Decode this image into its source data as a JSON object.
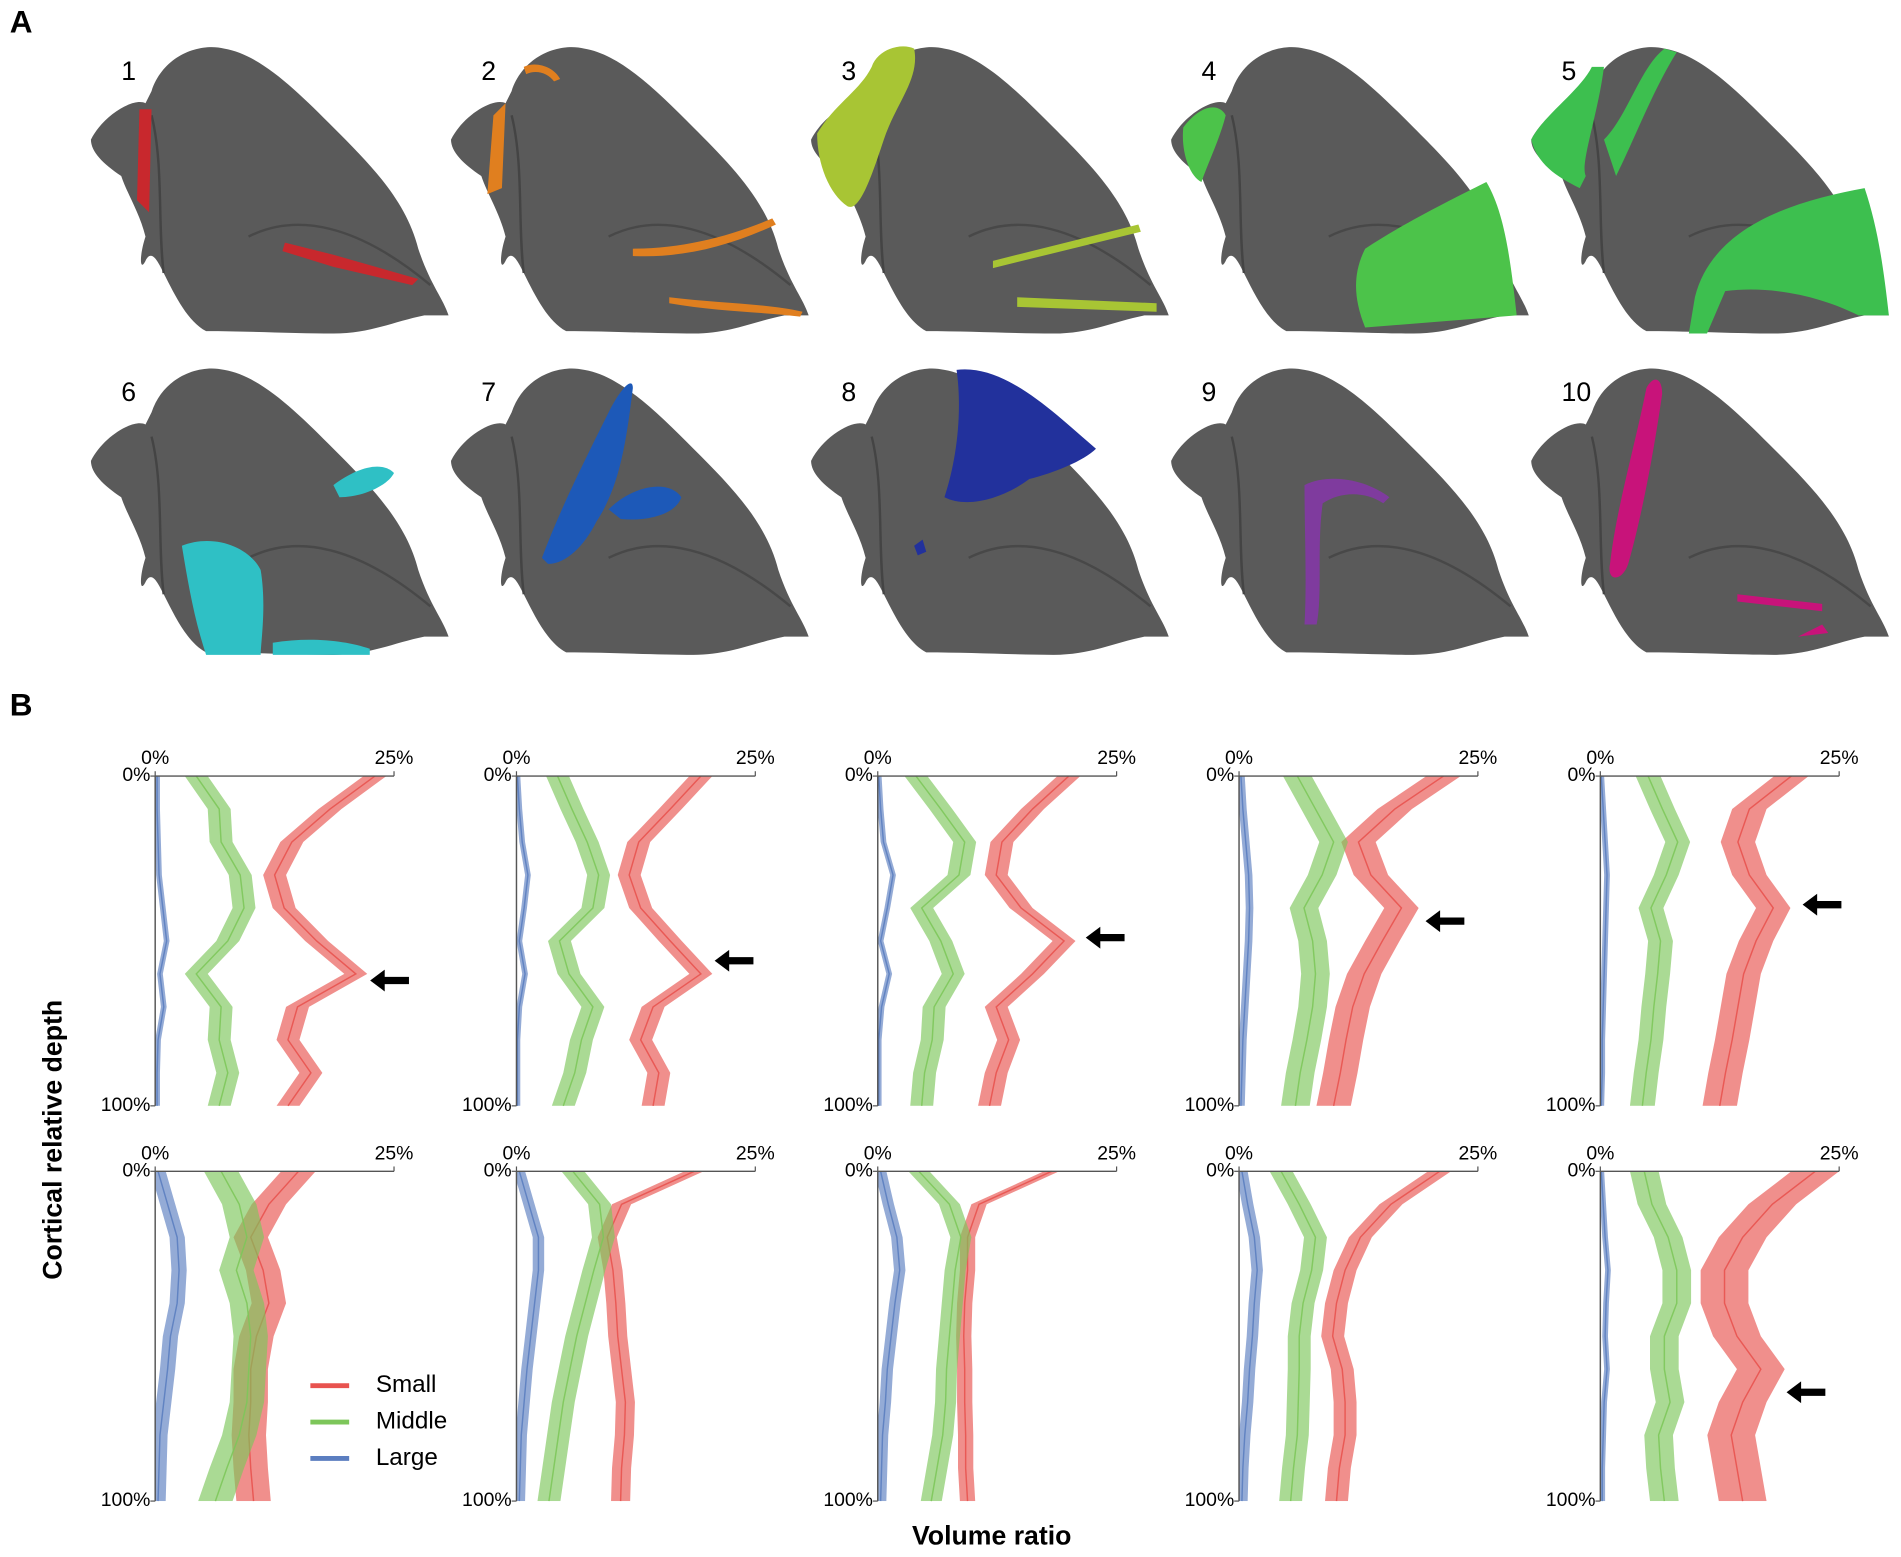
{
  "figure": {
    "panel_a_label": "A",
    "panel_b_label": "B",
    "map_labels": [
      "1",
      "2",
      "3",
      "4",
      "5",
      "6",
      "7",
      "8",
      "9",
      "10"
    ],
    "y_label": "Cortical relative depth",
    "x_label": "Volume ratio"
  },
  "chart_data": [
    {
      "type": "line",
      "y_inverted": true,
      "xlim": [
        0,
        25
      ],
      "ylim": [
        0,
        100
      ],
      "xticks": [
        {
          "value": 0,
          "label": "0%"
        },
        {
          "value": 25,
          "label": "25%"
        }
      ],
      "yticks": [
        {
          "value": 0,
          "label": "0%"
        },
        {
          "value": 100,
          "label": "100%"
        }
      ],
      "y": [
        0,
        10,
        20,
        30,
        40,
        50,
        60,
        70,
        80,
        90,
        100
      ],
      "arrow_depth": 62,
      "series": [
        {
          "name": "Small",
          "color": "#e8534f",
          "error": 1.2,
          "values": [
            23,
            18.3,
            14.3,
            12.5,
            13.5,
            16.9,
            21,
            14.9,
            13.9,
            16.3,
            13.9
          ]
        },
        {
          "name": "Middle",
          "color": "#7dc65a",
          "error": 1.2,
          "values": [
            4.3,
            6.7,
            6.9,
            8.9,
            9.3,
            7.6,
            4.3,
            6.9,
            6.7,
            7.6,
            6.7
          ]
        },
        {
          "name": "Large",
          "color": "#5b7ec0",
          "error": 0.3,
          "values": [
            0.2,
            0.2,
            0.3,
            0.4,
            0.8,
            1.2,
            0.5,
            0.9,
            0.3,
            0.2,
            0.2
          ]
        }
      ]
    },
    {
      "type": "line",
      "y_inverted": true,
      "xlim": [
        0,
        25
      ],
      "ylim": [
        0,
        100
      ],
      "xticks": [
        {
          "value": 0,
          "label": "0%"
        },
        {
          "value": 25,
          "label": "25%"
        }
      ],
      "yticks": [
        {
          "value": 0,
          "label": "0%"
        },
        {
          "value": 100,
          "label": "100%"
        }
      ],
      "y": [
        0,
        10,
        20,
        30,
        40,
        50,
        60,
        70,
        80,
        90,
        100
      ],
      "arrow_depth": 56,
      "series": [
        {
          "name": "Small",
          "color": "#e8534f",
          "error": 1.2,
          "values": [
            19.3,
            16.1,
            12.8,
            11.8,
            13,
            16.1,
            19.3,
            14.3,
            13,
            14.9,
            14.3
          ]
        },
        {
          "name": "Middle",
          "color": "#7dc65a",
          "error": 1.2,
          "values": [
            4.3,
            5.8,
            7.4,
            8.6,
            8,
            4.5,
            5.5,
            8,
            6.8,
            6.1,
            4.9
          ]
        },
        {
          "name": "Large",
          "color": "#5b7ec0",
          "error": 0.3,
          "values": [
            0.1,
            0.3,
            0.6,
            1.2,
            0.8,
            0.3,
            0.9,
            0.3,
            0.1,
            0.1,
            0.1
          ]
        }
      ]
    },
    {
      "type": "line",
      "y_inverted": true,
      "xlim": [
        0,
        25
      ],
      "ylim": [
        0,
        100
      ],
      "xticks": [
        {
          "value": 0,
          "label": "0%"
        },
        {
          "value": 25,
          "label": "25%"
        }
      ],
      "yticks": [
        {
          "value": 0,
          "label": "0%"
        },
        {
          "value": 100,
          "label": "100%"
        }
      ],
      "y": [
        0,
        10,
        20,
        30,
        40,
        50,
        60,
        70,
        80,
        90,
        100
      ],
      "arrow_depth": 49,
      "series": [
        {
          "name": "Small",
          "color": "#e8534f",
          "error": 1.2,
          "values": [
            20,
            16.2,
            13,
            12.4,
            15,
            19.5,
            16.2,
            12.4,
            13.7,
            12.4,
            11.7
          ]
        },
        {
          "name": "Middle",
          "color": "#7dc65a",
          "error": 1.2,
          "values": [
            4,
            6.6,
            9.1,
            8.5,
            4.6,
            6.6,
            7.9,
            5.9,
            5.7,
            4.9,
            4.6
          ]
        },
        {
          "name": "Large",
          "color": "#5b7ec0",
          "error": 0.3,
          "values": [
            0.1,
            0.3,
            0.6,
            1.6,
            1,
            0.3,
            1.2,
            0.4,
            0.1,
            0.1,
            0.1
          ]
        }
      ]
    },
    {
      "type": "line",
      "y_inverted": true,
      "xlim": [
        0,
        25
      ],
      "ylim": [
        0,
        100
      ],
      "xticks": [
        {
          "value": 0,
          "label": "0%"
        },
        {
          "value": 25,
          "label": "25%"
        }
      ],
      "yticks": [
        {
          "value": 0,
          "label": "0%"
        },
        {
          "value": 100,
          "label": "100%"
        }
      ],
      "y": [
        0,
        10,
        20,
        30,
        40,
        50,
        60,
        70,
        80,
        90,
        100
      ],
      "arrow_depth": 44,
      "series": [
        {
          "name": "Small",
          "color": "#e8534f",
          "error": 1.8,
          "values": [
            21.4,
            16.3,
            12.5,
            13.8,
            17,
            15,
            13.1,
            11.9,
            11.2,
            10.6,
            9.9
          ]
        },
        {
          "name": "Middle",
          "color": "#7dc65a",
          "error": 1.5,
          "values": [
            6.1,
            8,
            9.9,
            8.7,
            6.8,
            7.7,
            8,
            7.7,
            7.1,
            6.4,
            5.9
          ]
        },
        {
          "name": "Large",
          "color": "#5b7ec0",
          "error": 0.4,
          "values": [
            0.2,
            0.4,
            0.7,
            1,
            1.1,
            1,
            0.8,
            0.6,
            0.4,
            0.3,
            0.2
          ]
        }
      ]
    },
    {
      "type": "line",
      "y_inverted": true,
      "xlim": [
        0,
        25
      ],
      "ylim": [
        0,
        100
      ],
      "xticks": [
        {
          "value": 0,
          "label": "0%"
        },
        {
          "value": 25,
          "label": "25%"
        }
      ],
      "yticks": [
        {
          "value": 0,
          "label": "0%"
        },
        {
          "value": 100,
          "label": "100%"
        }
      ],
      "y": [
        0,
        10,
        20,
        30,
        40,
        50,
        60,
        70,
        80,
        90,
        100
      ],
      "arrow_depth": 39,
      "series": [
        {
          "name": "Small",
          "color": "#e8534f",
          "error": 1.8,
          "values": [
            20,
            15.6,
            14.4,
            15.6,
            18.1,
            16.3,
            15,
            14.4,
            13.8,
            13.1,
            12.5
          ]
        },
        {
          "name": "Middle",
          "color": "#7dc65a",
          "error": 1.3,
          "values": [
            5,
            6.5,
            8.1,
            6.9,
            5.3,
            6.3,
            6,
            5.6,
            5.3,
            4.8,
            4.4
          ]
        },
        {
          "name": "Large",
          "color": "#5b7ec0",
          "error": 0.3,
          "values": [
            0.1,
            0.3,
            0.5,
            0.7,
            0.6,
            0.5,
            0.4,
            0.3,
            0.2,
            0.2,
            0.1
          ]
        }
      ]
    },
    {
      "type": "line",
      "y_inverted": true,
      "legend": true,
      "xlim": [
        0,
        25
      ],
      "ylim": [
        0,
        100
      ],
      "xticks": [
        {
          "value": 0,
          "label": "0%"
        },
        {
          "value": 25,
          "label": "25%"
        }
      ],
      "yticks": [
        {
          "value": 0,
          "label": "0%"
        },
        {
          "value": 100,
          "label": "100%"
        }
      ],
      "y": [
        0,
        10,
        20,
        30,
        40,
        50,
        60,
        70,
        80,
        90,
        100
      ],
      "series": [
        {
          "name": "Small",
          "color": "#e8534f",
          "error": 1.8,
          "values": [
            15,
            11.9,
            10,
            11.3,
            11.9,
            10.6,
            10,
            10,
            9.8,
            10,
            10.3
          ]
        },
        {
          "name": "Middle",
          "color": "#7dc65a",
          "error": 1.8,
          "values": [
            6.9,
            8.8,
            9.6,
            8.5,
            9.6,
            10,
            9.8,
            9.6,
            8.8,
            7.5,
            6.3
          ]
        },
        {
          "name": "Large",
          "color": "#5b7ec0",
          "error": 0.8,
          "values": [
            0.3,
            1.3,
            2.3,
            2.5,
            2.3,
            1.6,
            1.3,
            0.9,
            0.5,
            0.4,
            0.3
          ]
        }
      ]
    },
    {
      "type": "line",
      "y_inverted": true,
      "xlim": [
        0,
        25
      ],
      "ylim": [
        0,
        100
      ],
      "xticks": [
        {
          "value": 0,
          "label": "0%"
        },
        {
          "value": 25,
          "label": "25%"
        }
      ],
      "yticks": [
        {
          "value": 0,
          "label": "0%"
        },
        {
          "value": 100,
          "label": "100%"
        }
      ],
      "y": [
        0,
        10,
        20,
        30,
        40,
        50,
        60,
        70,
        80,
        90,
        100
      ],
      "series": [
        {
          "name": "Small",
          "color": "#e8534f",
          "error": 1,
          "values": [
            18.6,
            11,
            9.5,
            10.1,
            10.4,
            10.6,
            11,
            11.4,
            11.3,
            11,
            10.9
          ]
        },
        {
          "name": "Middle",
          "color": "#7dc65a",
          "error": 1.2,
          "values": [
            5.9,
            8.7,
            9.1,
            8.1,
            7.2,
            6.3,
            5.6,
            4.9,
            4.4,
            3.9,
            3.4
          ]
        },
        {
          "name": "Large",
          "color": "#5b7ec0",
          "error": 0.6,
          "values": [
            0.3,
            1.3,
            2.3,
            2.3,
            1.9,
            1.5,
            1.1,
            0.8,
            0.5,
            0.4,
            0.3
          ]
        }
      ]
    },
    {
      "type": "line",
      "y_inverted": true,
      "xlim": [
        0,
        25
      ],
      "ylim": [
        0,
        100
      ],
      "xticks": [
        {
          "value": 0,
          "label": "0%"
        },
        {
          "value": 25,
          "label": "25%"
        }
      ],
      "yticks": [
        {
          "value": 0,
          "label": "0%"
        },
        {
          "value": 100,
          "label": "100%"
        }
      ],
      "y": [
        0,
        10,
        20,
        30,
        40,
        50,
        60,
        70,
        80,
        90,
        100
      ],
      "series": [
        {
          "name": "Small",
          "color": "#e8534f",
          "error": 0.8,
          "values": [
            18.2,
            10.6,
            9.4,
            9.4,
            9.1,
            9,
            9.1,
            9.1,
            9.2,
            9.2,
            9.4
          ]
        },
        {
          "name": "Middle",
          "color": "#7dc65a",
          "error": 1.1,
          "values": [
            4.3,
            7.5,
            8.7,
            8.1,
            7.8,
            7.5,
            7.2,
            7.1,
            6.8,
            6.2,
            5.6
          ]
        },
        {
          "name": "Large",
          "color": "#5b7ec0",
          "error": 0.6,
          "values": [
            0.3,
            1.1,
            2,
            2.3,
            1.8,
            1.4,
            1,
            0.8,
            0.5,
            0.4,
            0.3
          ]
        }
      ]
    },
    {
      "type": "line",
      "y_inverted": true,
      "xlim": [
        0,
        25
      ],
      "ylim": [
        0,
        100
      ],
      "xticks": [
        {
          "value": 0,
          "label": "0%"
        },
        {
          "value": 25,
          "label": "25%"
        }
      ],
      "yticks": [
        {
          "value": 0,
          "label": "0%"
        },
        {
          "value": 100,
          "label": "100%"
        }
      ],
      "y": [
        0,
        10,
        20,
        30,
        40,
        50,
        60,
        70,
        80,
        90,
        100
      ],
      "series": [
        {
          "name": "Small",
          "color": "#e8534f",
          "error": 1.2,
          "values": [
            21,
            15.9,
            12.7,
            11.1,
            10.2,
            9.8,
            10.8,
            11.1,
            11.1,
            10.5,
            10.2
          ]
        },
        {
          "name": "Middle",
          "color": "#7dc65a",
          "error": 1.2,
          "values": [
            4.4,
            6.3,
            8,
            7.6,
            6.7,
            6.3,
            6.3,
            6.2,
            6.1,
            5.7,
            5.4
          ]
        },
        {
          "name": "Large",
          "color": "#5b7ec0",
          "error": 0.6,
          "values": [
            0.3,
            0.9,
            1.6,
            1.9,
            1.6,
            1.4,
            1.1,
            0.9,
            0.6,
            0.4,
            0.3
          ]
        }
      ]
    },
    {
      "type": "line",
      "y_inverted": true,
      "xlim": [
        0,
        25
      ],
      "ylim": [
        0,
        100
      ],
      "xticks": [
        {
          "value": 0,
          "label": "0%"
        },
        {
          "value": 25,
          "label": "25%"
        }
      ],
      "yticks": [
        {
          "value": 0,
          "label": "0%"
        },
        {
          "value": 100,
          "label": "100%"
        }
      ],
      "y": [
        0,
        10,
        20,
        30,
        40,
        50,
        60,
        70,
        80,
        90,
        100
      ],
      "arrow_depth": 67,
      "series": [
        {
          "name": "Small",
          "color": "#e8534f",
          "error": 2.5,
          "values": [
            22.5,
            18,
            14.9,
            13,
            13,
            14.3,
            16.8,
            14.9,
            13.7,
            14.3,
            14.9
          ]
        },
        {
          "name": "Middle",
          "color": "#7dc65a",
          "error": 1.5,
          "values": [
            4.6,
            5.4,
            7.1,
            8,
            8,
            6.7,
            6.7,
            7.3,
            6.1,
            6.3,
            6.7
          ]
        },
        {
          "name": "Large",
          "color": "#5b7ec0",
          "error": 0.3,
          "values": [
            0.1,
            0.3,
            0.5,
            0.8,
            0.6,
            0.5,
            0.7,
            0.4,
            0.3,
            0.2,
            0.2
          ]
        }
      ]
    }
  ]
}
